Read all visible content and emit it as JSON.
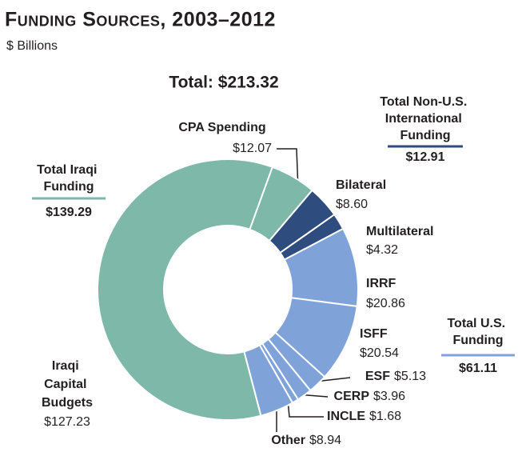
{
  "chart_data": {
    "type": "donut",
    "title": "Funding Sources, 2003–2012",
    "subtitle": "$ Billions",
    "annotations": [
      "Total: $213.32"
    ],
    "categories": [
      "CPA Spending",
      "Bilateral",
      "Multilateral",
      "IRRF",
      "ISFF",
      "ESF",
      "CERP",
      "INCLE",
      "Other",
      "Iraqi Capital Budgets"
    ],
    "values": [
      12.07,
      8.6,
      4.32,
      20.86,
      20.54,
      5.13,
      3.96,
      1.68,
      8.94,
      127.23
    ],
    "value_labels": [
      "$12.07",
      "$8.60",
      "$4.32",
      "$20.86",
      "$20.54",
      "$5.13",
      "$3.96",
      "$1.68",
      "$8.94",
      "$127.23"
    ],
    "colors": [
      "#7db8a9",
      "#2f4c7e",
      "#2f4c7e",
      "#7fa3d9",
      "#7fa3d9",
      "#7fa3d9",
      "#7fa3d9",
      "#7fa3d9",
      "#7fa3d9",
      "#7db8a9"
    ],
    "groups": [
      {
        "name": "Total Iraqi Funding",
        "value": 139.29,
        "value_label": "$139.29",
        "color": "#7db8a9"
      },
      {
        "name": "Total Non-U.S. International Funding",
        "value": 12.91,
        "value_label": "$12.91",
        "color": "#2f4c7e"
      },
      {
        "name": "Total U.S. Funding",
        "value": 61.11,
        "value_label": "$61.11",
        "color": "#7fa3d9"
      }
    ]
  }
}
